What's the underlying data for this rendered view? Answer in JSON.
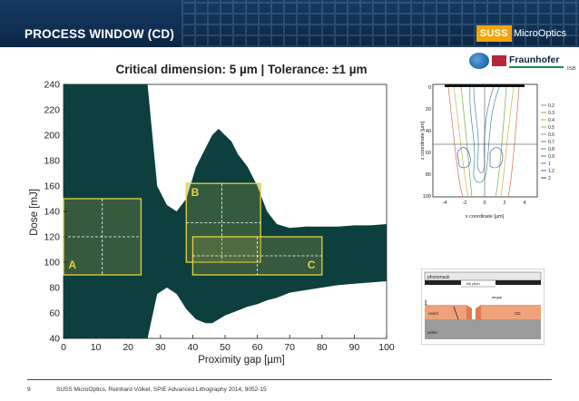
{
  "header": {
    "title": "PROCESS WINDOW (CD)",
    "brand_box": "SUSS",
    "brand_text": "MicroOptics"
  },
  "logos": {
    "fraunhofer": "Fraunhofer",
    "fraunhofer_sub": "IISB"
  },
  "chart_data": {
    "type": "area",
    "title": "Critical dimension: 5 µm | Tolerance: ±1 µm",
    "xlabel": "Proximity gap [µm]",
    "ylabel": "Dose [mJ]",
    "xlim": [
      0,
      100
    ],
    "ylim": [
      40,
      240
    ],
    "xticks": [
      "0",
      "10",
      "20",
      "30",
      "40",
      "50",
      "60",
      "70",
      "80",
      "90",
      "100"
    ],
    "yticks": [
      "40",
      "60",
      "80",
      "100",
      "120",
      "140",
      "160",
      "180",
      "200",
      "220",
      "240"
    ],
    "grid": false,
    "fill_color": "#0e3f3f",
    "band": {
      "x": [
        0,
        2,
        5,
        8,
        11,
        14,
        17,
        20,
        23,
        26,
        29,
        32,
        35,
        38,
        41,
        44,
        46,
        48,
        50,
        52,
        54,
        57,
        60,
        63,
        66,
        70,
        75,
        80,
        85,
        90,
        95,
        100
      ],
      "upper": [
        240,
        240,
        240,
        240,
        240,
        240,
        240,
        240,
        240,
        240,
        160,
        145,
        140,
        150,
        175,
        190,
        200,
        205,
        200,
        195,
        185,
        175,
        160,
        140,
        130,
        127,
        128,
        128,
        128,
        129,
        129,
        130
      ],
      "lower": [
        40,
        40,
        40,
        40,
        40,
        40,
        40,
        40,
        40,
        40,
        75,
        80,
        75,
        63,
        55,
        52,
        52,
        55,
        58,
        60,
        62,
        65,
        67,
        70,
        72,
        76,
        78,
        80,
        82,
        83,
        84,
        85
      ]
    },
    "windows": [
      {
        "label": "A",
        "x": [
          0,
          24
        ],
        "y": [
          90,
          150
        ],
        "center": [
          12,
          120
        ]
      },
      {
        "label": "B",
        "x": [
          38,
          61
        ],
        "y": [
          100,
          162
        ],
        "center": [
          49,
          131
        ]
      },
      {
        "label": "C",
        "x": [
          40,
          80
        ],
        "y": [
          90,
          120
        ],
        "center": [
          60,
          105
        ]
      }
    ],
    "window_color": "#e6d23c"
  },
  "sim": {
    "x_label": "x coordinate [µm]",
    "y_label": "z coordinate [µm]",
    "xticks": [
      "-4",
      "-2",
      "0",
      "2",
      "4"
    ],
    "yticks": [
      "0",
      "20",
      "40",
      "60",
      "80",
      "100"
    ],
    "legend": [
      "0.2",
      "0.3",
      "0.4",
      "0.5",
      "0.6",
      "0.7",
      "0.8",
      "0.9",
      "1",
      "1.2",
      "2"
    ]
  },
  "schematic": {
    "photomask": "photomask",
    "wafer": "wafer",
    "resist": "resist",
    "cd": "CD",
    "full_pitch": "full pitch",
    "gap": "gap",
    "airgap": "airgap"
  },
  "footer": {
    "page": "9",
    "text": "SUSS MicroOptics, Reinhard Völkel, SPIE Advanced Lithography 2014, 9052-15"
  }
}
